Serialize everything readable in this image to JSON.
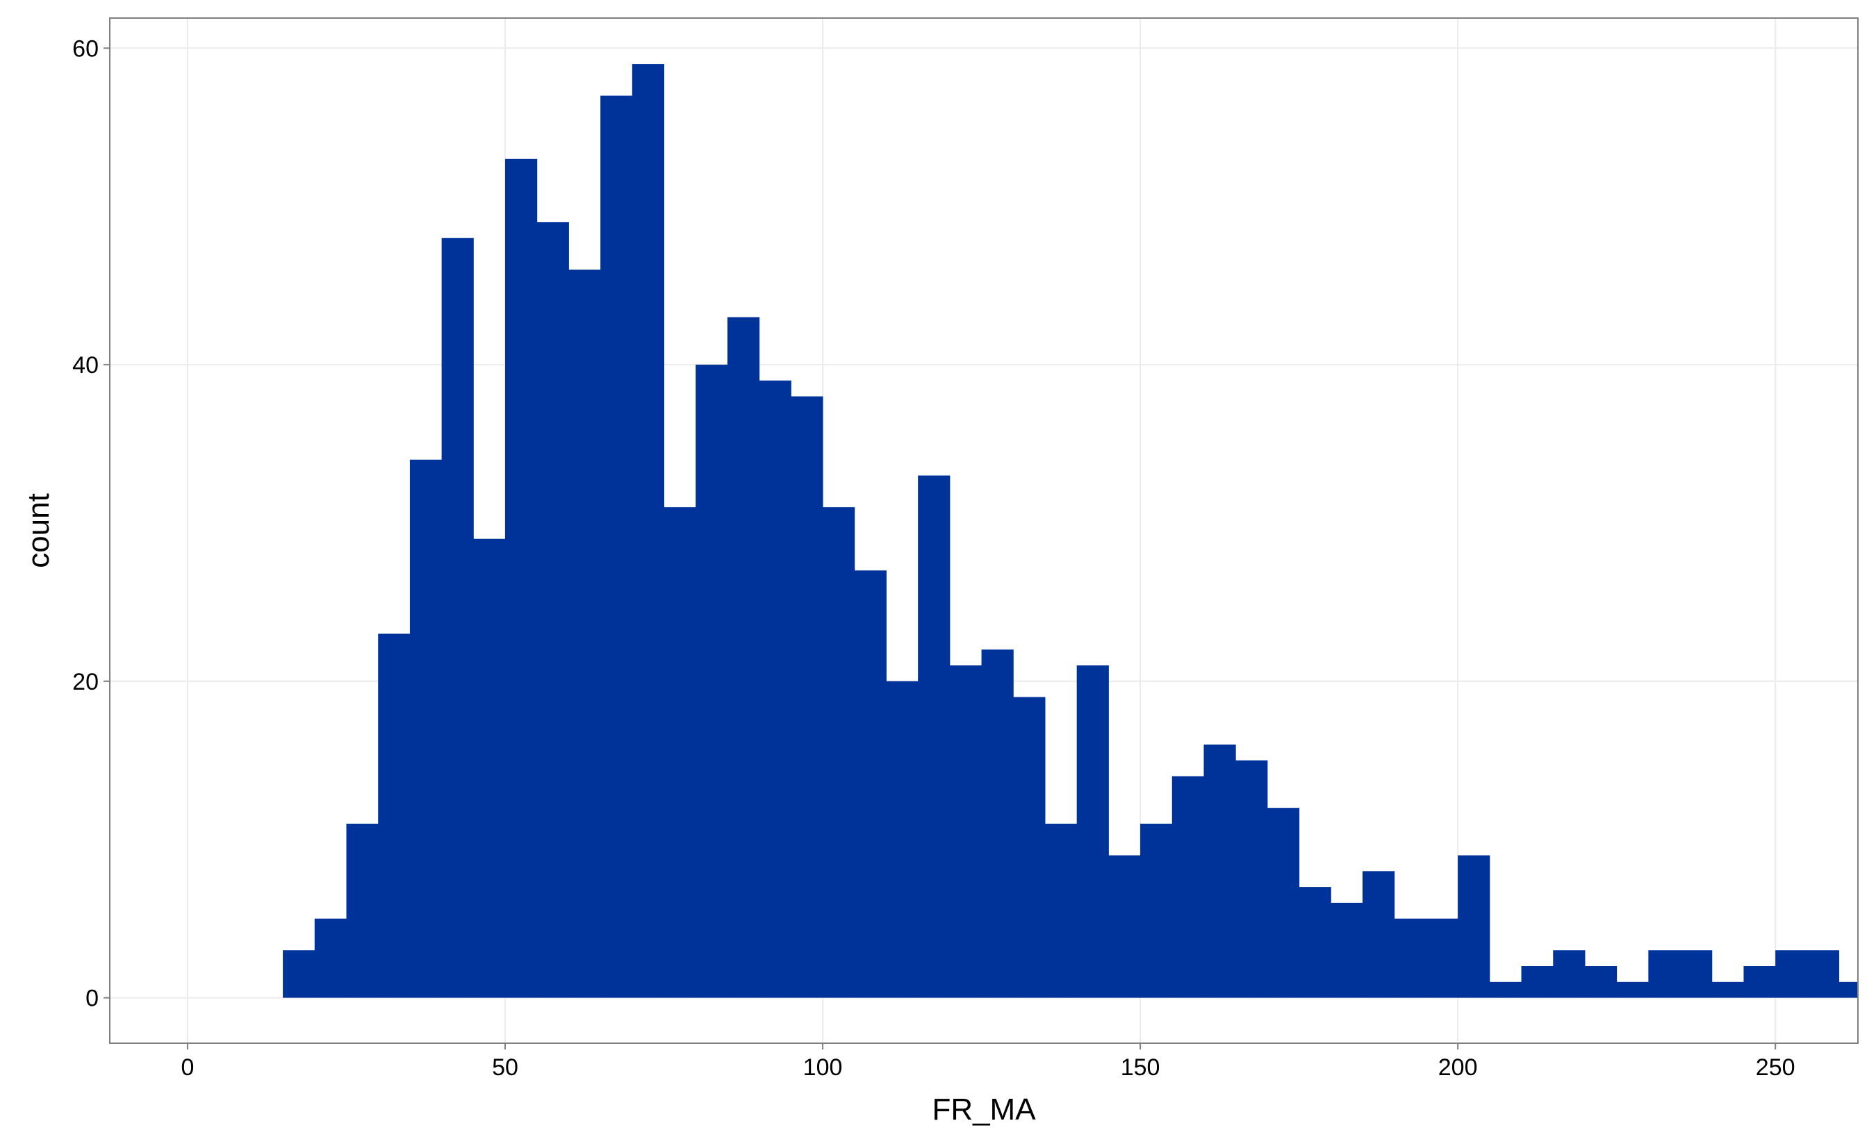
{
  "chart_data": {
    "type": "histogram",
    "x_label": "FR_MA",
    "y_label": "count",
    "color": "#003399",
    "grid": true,
    "bins": [
      15,
      20,
      25,
      30,
      35,
      40,
      45,
      50,
      55,
      60,
      65,
      70,
      75,
      80,
      85,
      90,
      95,
      100,
      105,
      110,
      115,
      120,
      125,
      130,
      135,
      140,
      145,
      150,
      155,
      160,
      165,
      170,
      175,
      180,
      185,
      190,
      195,
      200,
      205,
      210,
      215,
      220,
      225,
      230,
      235,
      240,
      245,
      250,
      255,
      260,
      265
    ],
    "counts": [
      3,
      5,
      11,
      23,
      34,
      48,
      29,
      53,
      49,
      46,
      57,
      59,
      31,
      40,
      43,
      39,
      38,
      31,
      27,
      20,
      33,
      21,
      22,
      19,
      11,
      21,
      9,
      11,
      14,
      16,
      15,
      12,
      7,
      6,
      8,
      5,
      5,
      9,
      1,
      2,
      3,
      2,
      1,
      3,
      3,
      1,
      2,
      3,
      3,
      1
    ],
    "xlim": [
      -12.25,
      263
    ],
    "ylim": [
      -2.87,
      61.9
    ],
    "xticks": [
      0,
      50,
      100,
      150,
      200,
      250
    ],
    "yticks": [
      0,
      20,
      40,
      60
    ]
  }
}
